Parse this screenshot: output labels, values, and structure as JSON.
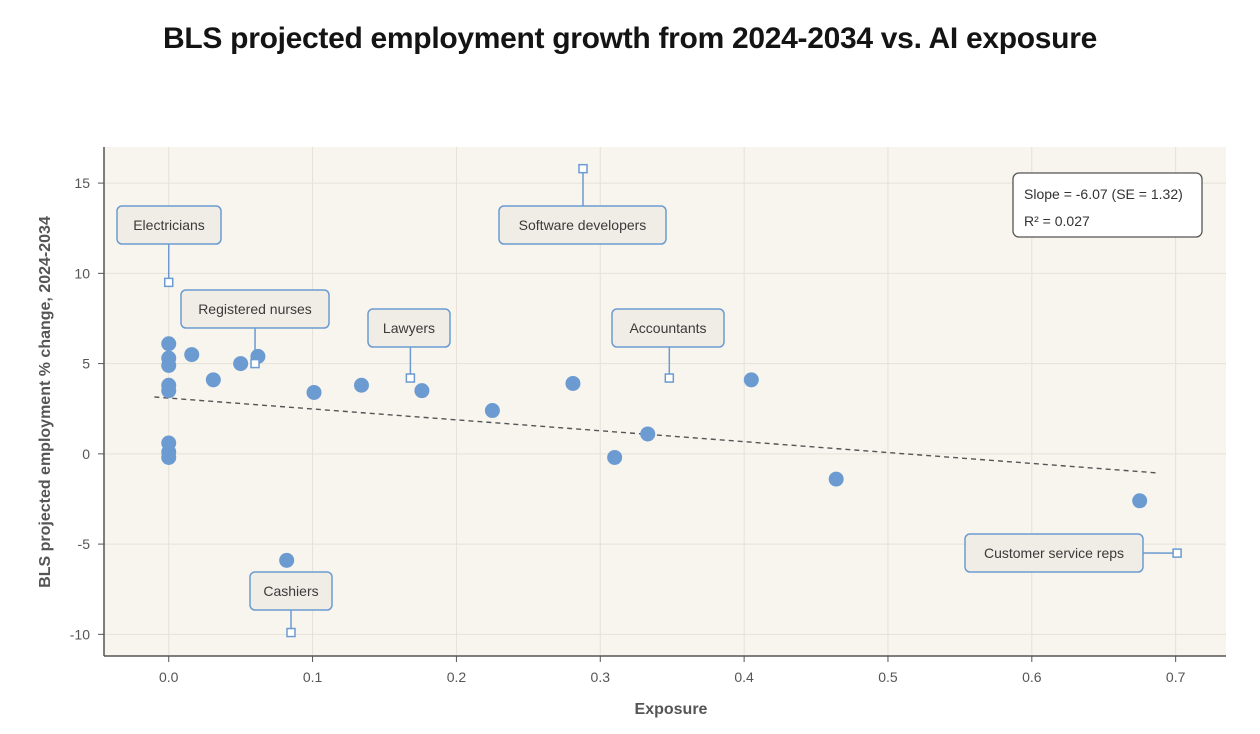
{
  "chart_data": {
    "type": "scatter",
    "title": "BLS projected employment growth from 2024-2034 vs. AI exposure",
    "xlabel": "Exposure",
    "ylabel": "BLS projected employment % change, 2024-2034",
    "xlim": [
      -0.045,
      0.735
    ],
    "ylim": [
      -11.2,
      17
    ],
    "xticks": [
      "0.0",
      "0.1",
      "0.2",
      "0.3",
      "0.4",
      "0.5",
      "0.6",
      "0.7"
    ],
    "yticks": [
      "15",
      "10",
      "5",
      "0",
      "-5",
      "-10"
    ],
    "grid": true,
    "point_color": "#6b9bd0",
    "points": [
      {
        "x": 0.0,
        "y": 6.1
      },
      {
        "x": 0.0,
        "y": 5.3
      },
      {
        "x": 0.0,
        "y": 4.9
      },
      {
        "x": 0.0,
        "y": 3.8
      },
      {
        "x": 0.0,
        "y": 3.5
      },
      {
        "x": 0.0,
        "y": 0.6
      },
      {
        "x": 0.0,
        "y": 0.1
      },
      {
        "x": 0.0,
        "y": -0.2
      },
      {
        "x": 0.016,
        "y": 5.5
      },
      {
        "x": 0.031,
        "y": 4.1
      },
      {
        "x": 0.05,
        "y": 5.0
      },
      {
        "x": 0.062,
        "y": 5.4
      },
      {
        "x": 0.082,
        "y": -5.9
      },
      {
        "x": 0.101,
        "y": 3.4
      },
      {
        "x": 0.134,
        "y": 3.8
      },
      {
        "x": 0.176,
        "y": 3.5
      },
      {
        "x": 0.225,
        "y": 2.4
      },
      {
        "x": 0.281,
        "y": 3.9
      },
      {
        "x": 0.31,
        "y": -0.2
      },
      {
        "x": 0.333,
        "y": 1.1
      },
      {
        "x": 0.405,
        "y": 4.1
      },
      {
        "x": 0.464,
        "y": -1.4
      },
      {
        "x": 0.675,
        "y": -2.6
      }
    ],
    "trendline": {
      "x": [
        -0.01,
        0.686
      ],
      "y": [
        3.15,
        -1.05
      ],
      "style": "dashed"
    },
    "stats": {
      "line1": "Slope = -6.07 (SE = 1.32)",
      "line2": "R² = 0.027"
    },
    "annotations": [
      {
        "label": "Electricians",
        "x": 0.0,
        "y": 9.5
      },
      {
        "label": "Registered nurses",
        "x": 0.06,
        "y": 5.0
      },
      {
        "label": "Lawyers",
        "x": 0.168,
        "y": 4.2
      },
      {
        "label": "Software developers",
        "x": 0.288,
        "y": 15.8
      },
      {
        "label": "Accountants",
        "x": 0.348,
        "y": 4.2
      },
      {
        "label": "Cashiers",
        "x": 0.085,
        "y": -9.9
      },
      {
        "label": "Customer service reps",
        "x": 0.701,
        "y": -5.5
      }
    ]
  }
}
